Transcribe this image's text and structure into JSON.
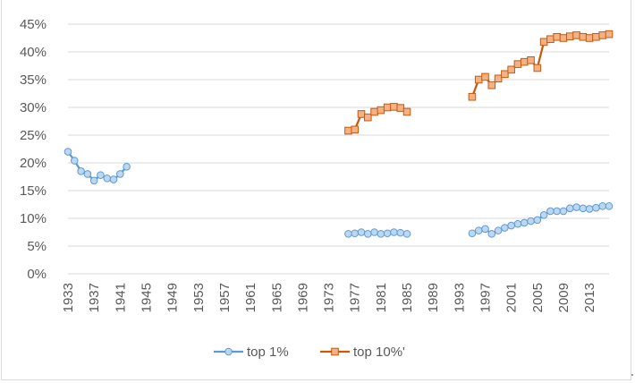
{
  "chart_data": {
    "type": "line",
    "x_tick_labels": [
      "1933",
      "1937",
      "1941",
      "1945",
      "1949",
      "1953",
      "1957",
      "1961",
      "1965",
      "1969",
      "1973",
      "1977",
      "1981",
      "1985",
      "1989",
      "1993",
      "1997",
      "2001",
      "2005",
      "2009",
      "2013"
    ],
    "y_tick_labels": [
      "0%",
      "5%",
      "10%",
      "15%",
      "20%",
      "25%",
      "30%",
      "35%",
      "40%",
      "45%"
    ],
    "xlim": [
      1933,
      2016
    ],
    "ylim": [
      0,
      45
    ],
    "grid": true,
    "legend_position": "bottom",
    "series": [
      {
        "name": "top 1%",
        "color": "#5b9bd5",
        "marker_fill": "#bdd7ee",
        "marker": "circle",
        "points": [
          [
            1933,
            22.0
          ],
          [
            1934,
            20.4
          ],
          [
            1935,
            18.5
          ],
          [
            1936,
            18.0
          ],
          [
            1937,
            16.8
          ],
          [
            1938,
            17.8
          ],
          [
            1939,
            17.2
          ],
          [
            1940,
            17.0
          ],
          [
            1941,
            18.0
          ],
          [
            1942,
            19.3
          ],
          [
            1976,
            7.2
          ],
          [
            1977,
            7.3
          ],
          [
            1978,
            7.5
          ],
          [
            1979,
            7.2
          ],
          [
            1980,
            7.5
          ],
          [
            1981,
            7.2
          ],
          [
            1982,
            7.3
          ],
          [
            1983,
            7.5
          ],
          [
            1984,
            7.4
          ],
          [
            1985,
            7.2
          ],
          [
            1995,
            7.3
          ],
          [
            1996,
            7.8
          ],
          [
            1997,
            8.1
          ],
          [
            1998,
            7.2
          ],
          [
            1999,
            7.8
          ],
          [
            2000,
            8.3
          ],
          [
            2001,
            8.7
          ],
          [
            2002,
            9.0
          ],
          [
            2003,
            9.2
          ],
          [
            2004,
            9.5
          ],
          [
            2005,
            9.7
          ],
          [
            2006,
            10.6
          ],
          [
            2007,
            11.3
          ],
          [
            2008,
            11.3
          ],
          [
            2009,
            11.3
          ],
          [
            2010,
            11.8
          ],
          [
            2011,
            12.0
          ],
          [
            2012,
            11.8
          ],
          [
            2013,
            11.7
          ],
          [
            2014,
            11.9
          ],
          [
            2015,
            12.2
          ],
          [
            2016,
            12.2
          ]
        ]
      },
      {
        "name": "top 10%'",
        "color": "#c55a11",
        "marker_fill": "#f4b183",
        "marker": "square",
        "points": [
          [
            1976,
            25.8
          ],
          [
            1977,
            26.0
          ],
          [
            1978,
            28.8
          ],
          [
            1979,
            28.2
          ],
          [
            1980,
            29.2
          ],
          [
            1981,
            29.5
          ],
          [
            1982,
            30.0
          ],
          [
            1983,
            30.1
          ],
          [
            1984,
            29.9
          ],
          [
            1985,
            29.2
          ],
          [
            1995,
            31.9
          ],
          [
            1996,
            35.0
          ],
          [
            1997,
            35.5
          ],
          [
            1998,
            34.0
          ],
          [
            1999,
            35.2
          ],
          [
            2000,
            36.0
          ],
          [
            2001,
            36.8
          ],
          [
            2002,
            37.8
          ],
          [
            2003,
            38.2
          ],
          [
            2004,
            38.5
          ],
          [
            2005,
            37.1
          ],
          [
            2006,
            41.8
          ],
          [
            2007,
            42.3
          ],
          [
            2008,
            42.7
          ],
          [
            2009,
            42.5
          ],
          [
            2010,
            42.8
          ],
          [
            2011,
            43.0
          ],
          [
            2012,
            42.7
          ],
          [
            2013,
            42.5
          ],
          [
            2014,
            42.7
          ],
          [
            2015,
            43.0
          ],
          [
            2016,
            43.2
          ]
        ]
      }
    ]
  }
}
